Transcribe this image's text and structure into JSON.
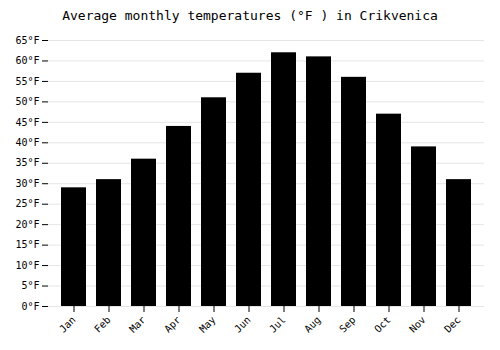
{
  "chart_data": {
    "type": "bar",
    "title": "Average monthly temperatures (°F ) in Crikvenica",
    "categories": [
      "Jan",
      "Feb",
      "Mar",
      "Apr",
      "May",
      "Jun",
      "Jul",
      "Aug",
      "Sep",
      "Oct",
      "Nov",
      "Dec"
    ],
    "values": [
      29,
      31,
      36,
      44,
      51,
      57,
      62,
      61,
      56,
      47,
      39,
      31
    ],
    "ylim": [
      0,
      65
    ],
    "yticks": [
      {
        "value": 0,
        "label": "0°F"
      },
      {
        "value": 5,
        "label": "5°F"
      },
      {
        "value": 10,
        "label": "10°F"
      },
      {
        "value": 15,
        "label": "15°F"
      },
      {
        "value": 20,
        "label": "20°F"
      },
      {
        "value": 25,
        "label": "25°F"
      },
      {
        "value": 30,
        "label": "30°F"
      },
      {
        "value": 35,
        "label": "35°F"
      },
      {
        "value": 40,
        "label": "40°F"
      },
      {
        "value": 45,
        "label": "45°F"
      },
      {
        "value": 50,
        "label": "50°F"
      },
      {
        "value": 55,
        "label": "55°F"
      },
      {
        "value": 60,
        "label": "60°F"
      },
      {
        "value": 65,
        "label": "65°F"
      }
    ],
    "grid": true
  }
}
